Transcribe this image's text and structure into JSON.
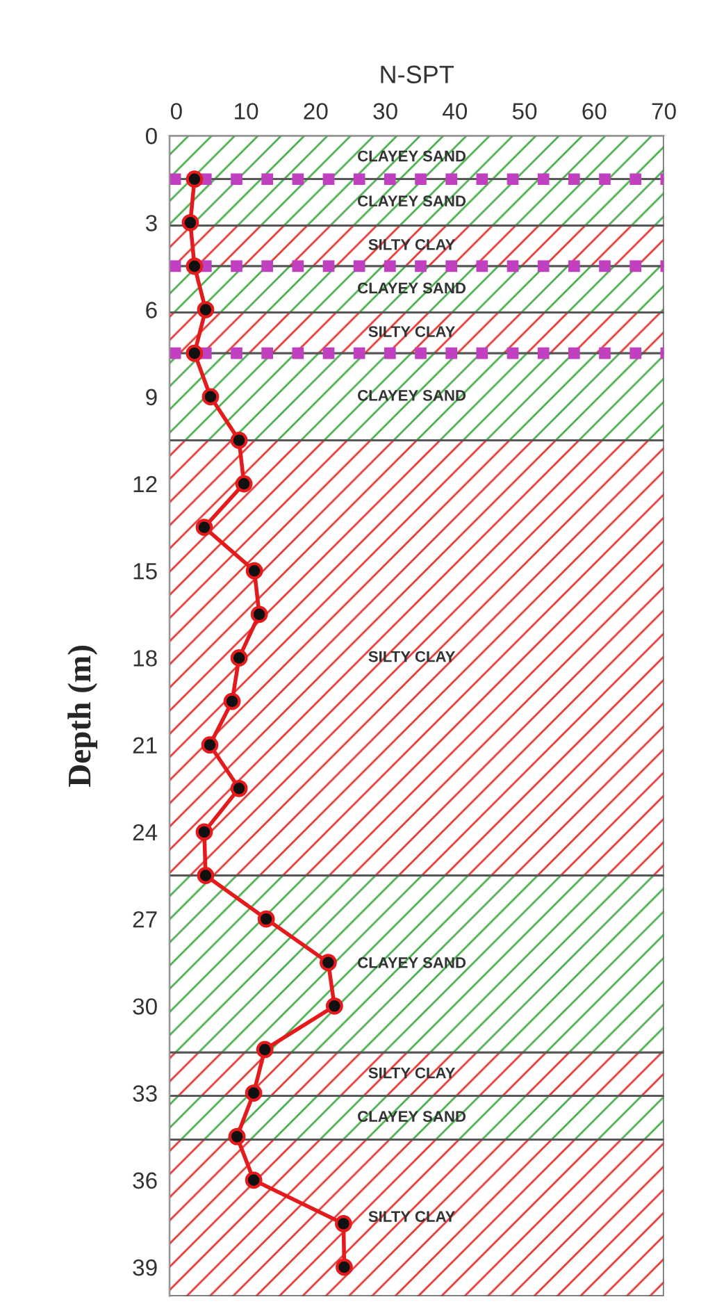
{
  "chart_data": {
    "type": "line",
    "xlabel": "N-SPT",
    "ylabel": "Depth (m)",
    "xlim": [
      -1,
      70
    ],
    "xticks": [
      0,
      10,
      20,
      30,
      40,
      50,
      60,
      70
    ],
    "ylim": [
      40,
      0
    ],
    "yticks": [
      0,
      3,
      6,
      9,
      12,
      15,
      18,
      21,
      24,
      27,
      30,
      33,
      36,
      39
    ],
    "series": [
      {
        "color": "#e41a1c",
        "x": [
          2.6,
          2,
          2.6,
          4.2,
          2.6,
          4.9,
          9,
          9.7,
          4,
          11.2,
          11.9,
          9,
          8,
          4.8,
          9,
          4,
          4.2,
          12.9,
          21.8,
          22.7,
          12.7,
          11.1,
          8.7,
          11.1,
          24,
          24.1
        ],
        "values": [
          1.5,
          3,
          4.5,
          6,
          7.5,
          9,
          10.5,
          12,
          13.5,
          15,
          16.5,
          18,
          19.5,
          21,
          22.5,
          24,
          25.5,
          27,
          28.5,
          30,
          31.5,
          33,
          34.5,
          36,
          37.5,
          39
        ]
      }
    ],
    "marker": "circle",
    "line_style": "solid",
    "grid": false,
    "legend": false,
    "bands": [
      {
        "axis": "y",
        "from": 0,
        "to": 1.5,
        "label": "CLAYEY SAND",
        "color": "#4caf50"
      },
      {
        "axis": "y",
        "from": 1.5,
        "to": 3.1,
        "label": "CLAYEY SAND",
        "color": "#4caf50"
      },
      {
        "axis": "y",
        "from": 3.1,
        "to": 4.5,
        "label": "SILTY CLAY",
        "color": "#e53935"
      },
      {
        "axis": "y",
        "from": 4.5,
        "to": 6.1,
        "label": "CLAYEY SAND",
        "color": "#4caf50"
      },
      {
        "axis": "y",
        "from": 6.1,
        "to": 7.5,
        "label": "SILTY CLAY",
        "color": "#e53935"
      },
      {
        "axis": "y",
        "from": 7.5,
        "to": 10.5,
        "label": "CLAYEY SAND",
        "color": "#4caf50"
      },
      {
        "axis": "y",
        "from": 10.5,
        "to": 25.5,
        "label": "SILTY CLAY",
        "color": "#e53935"
      },
      {
        "axis": "y",
        "from": 25.5,
        "to": 31.6,
        "label": "CLAYEY SAND",
        "color": "#4caf50"
      },
      {
        "axis": "y",
        "from": 31.6,
        "to": 33.1,
        "label": "SILTY CLAY",
        "color": "#e53935"
      },
      {
        "axis": "y",
        "from": 33.1,
        "to": 34.6,
        "label": "CLAYEY SAND",
        "color": "#4caf50"
      },
      {
        "axis": "y",
        "from": 34.6,
        "to": 40,
        "label": "SILTY CLAY",
        "color": "#e53935"
      }
    ],
    "ref_lines": [
      {
        "axis": "y",
        "value": 1.5,
        "color": "#c040c0",
        "line_style": "dotted"
      },
      {
        "axis": "y",
        "value": 4.5,
        "color": "#c040c0",
        "line_style": "dotted"
      },
      {
        "axis": "y",
        "value": 7.5,
        "color": "#c040c0",
        "line_style": "dotted"
      }
    ]
  }
}
